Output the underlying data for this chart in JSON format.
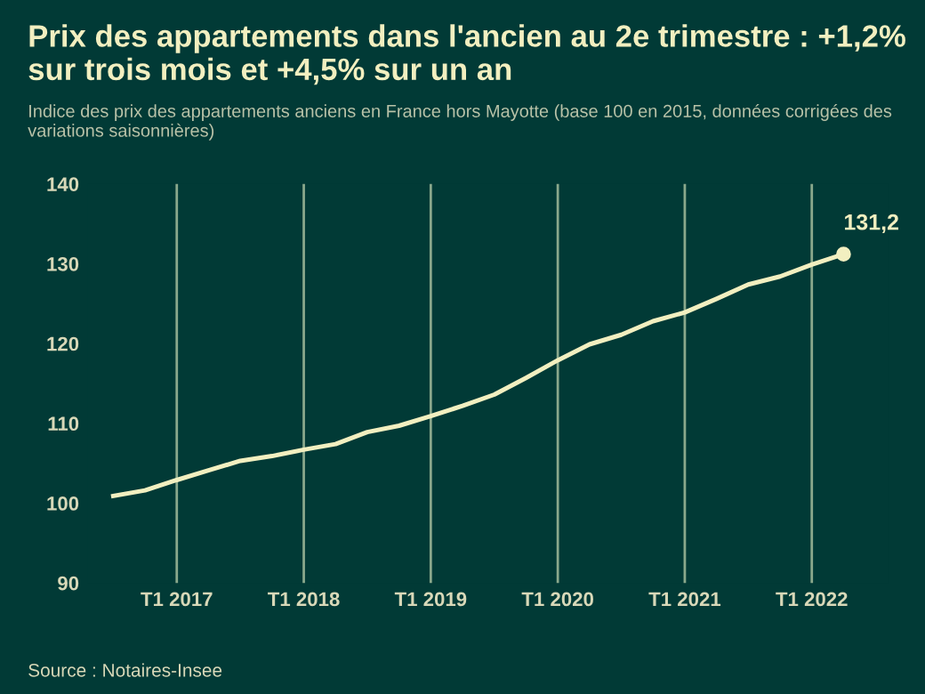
{
  "chart_data": {
    "type": "line",
    "title": "Prix des appartements dans l'ancien au 2e trimestre : +1,2% sur trois mois et +4,5% sur un an",
    "subtitle": "Indice des prix des appartements anciens en France hors Mayotte (base 100 en 2015, données corrigées des variations saisonnières)",
    "categories": [
      null,
      null,
      "T1 2017",
      null,
      null,
      null,
      "T1 2018",
      null,
      null,
      null,
      "T1 2019",
      null,
      null,
      null,
      "T1 2020",
      null,
      null,
      null,
      "T1 2021",
      null,
      null,
      null,
      "T1 2022",
      null
    ],
    "series": [
      {
        "color": "#f2efc0",
        "values": [
          100.9,
          101.6,
          102.9,
          104.1,
          105.3,
          105.9,
          106.7,
          107.4,
          108.9,
          109.7,
          110.9,
          112.2,
          113.6,
          115.7,
          117.9,
          119.9,
          121.1,
          122.8,
          123.9,
          125.6,
          127.4,
          128.4,
          129.9,
          131.2
        ],
        "value_labels": [
          null,
          null,
          null,
          null,
          null,
          null,
          null,
          null,
          null,
          null,
          null,
          null,
          null,
          null,
          null,
          null,
          null,
          null,
          null,
          null,
          null,
          null,
          null,
          "131,2"
        ]
      }
    ],
    "ylim": [
      90,
      140
    ],
    "yticks": [
      90,
      100,
      110,
      120,
      130,
      140
    ],
    "grid": "x",
    "marker": "none",
    "line_style": "solid",
    "legend": false,
    "annotations": [
      "Source : Notaires-Insee"
    ]
  }
}
